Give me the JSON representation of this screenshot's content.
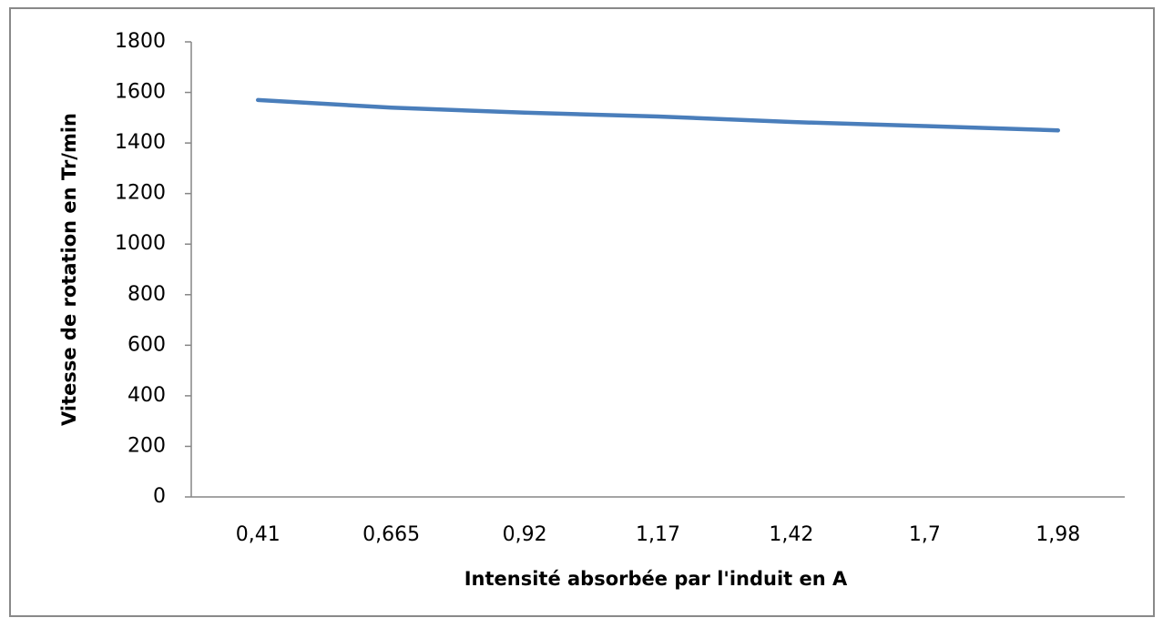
{
  "chart_data": {
    "type": "line",
    "x_label": "Intensité absorbée par l'induit en A",
    "y_label": "Vitesse de rotation en Tr/min",
    "categories": [
      "0,41",
      "0,665",
      "0,92",
      "1,17",
      "1,42",
      "1,7",
      "1,98"
    ],
    "series": [
      {
        "name": "Vitesse",
        "color": "#4a7ebb",
        "values": [
          1570,
          1540,
          1520,
          1505,
          1483,
          1467,
          1450
        ]
      }
    ],
    "ylim": [
      0,
      1800
    ],
    "yticks": [
      0,
      200,
      400,
      600,
      800,
      1000,
      1200,
      1400,
      1600,
      1800
    ],
    "grid": false
  }
}
